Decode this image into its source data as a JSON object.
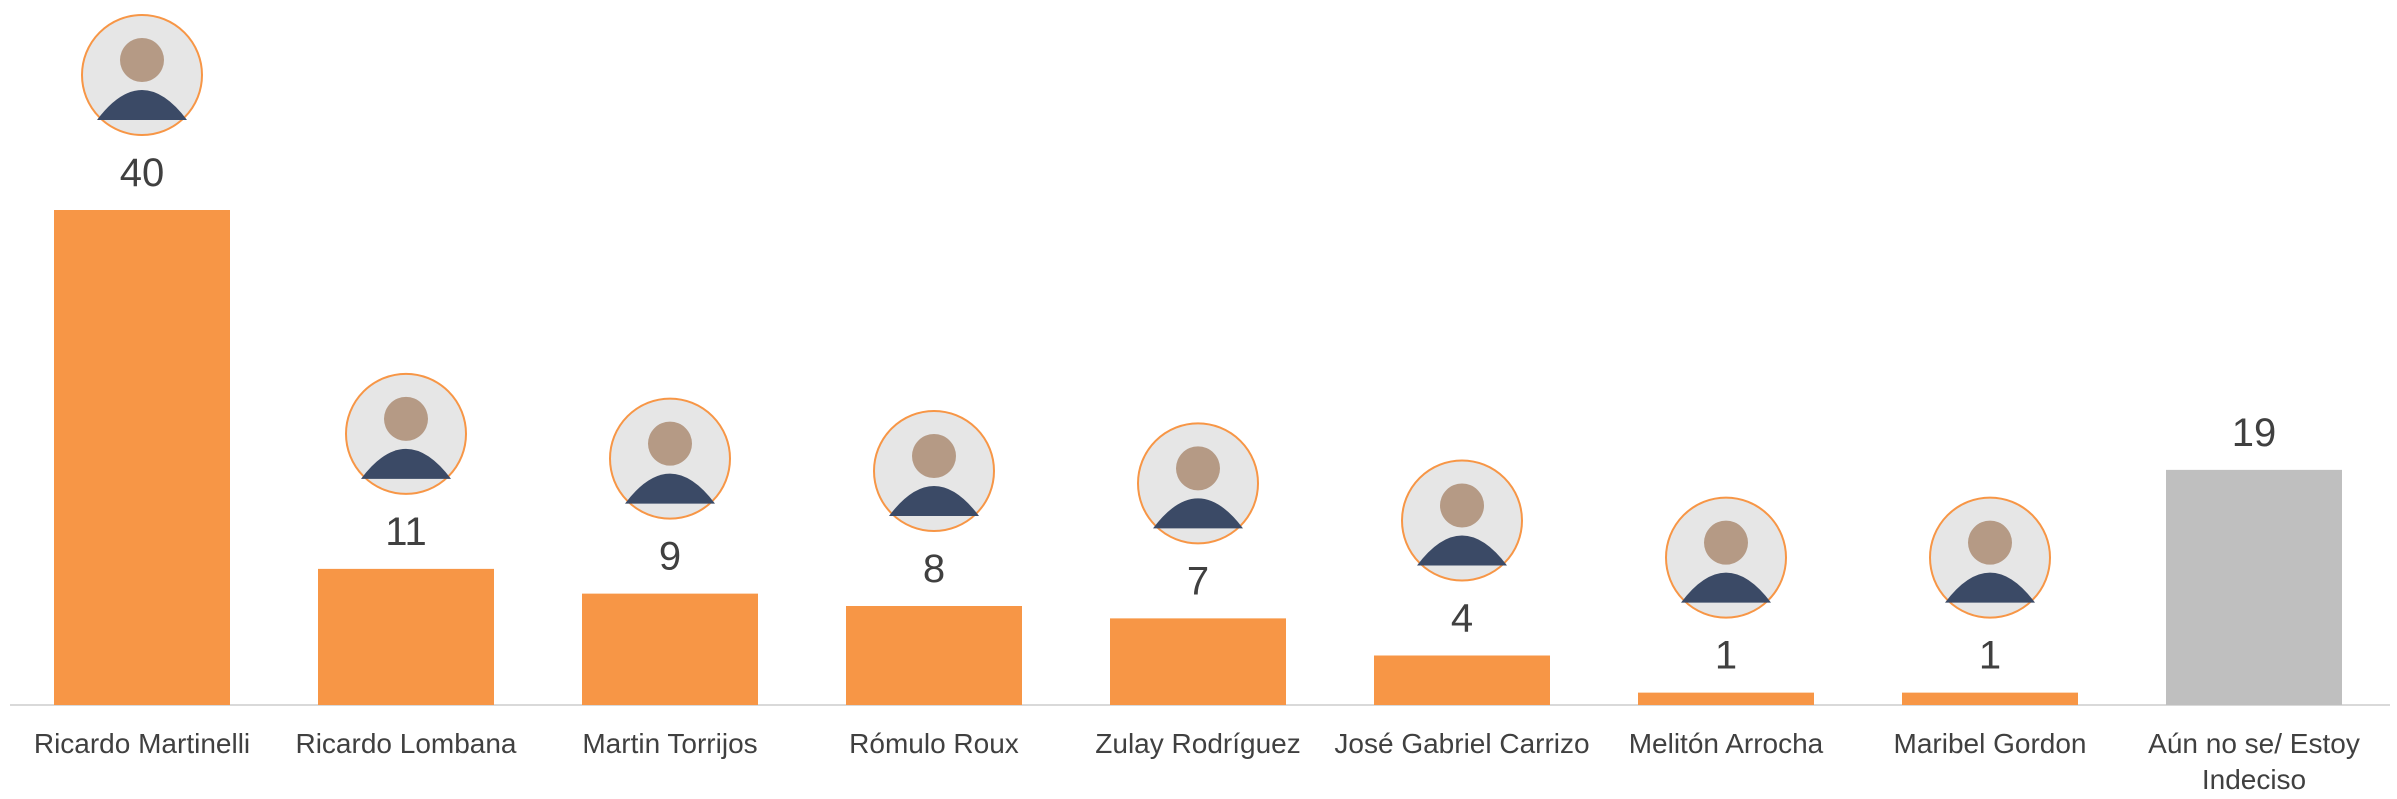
{
  "chart_data": {
    "type": "bar",
    "categories": [
      "Ricardo Martinelli",
      "Ricardo Lombana",
      "Martin Torrijos",
      "Rómulo Roux",
      "Zulay Rodríguez",
      "José Gabriel Carrizo",
      "Melitón Arrocha",
      "Maribel Gordon",
      "Aún no se/ Estoy Indeciso"
    ],
    "values": [
      40,
      11,
      9,
      8,
      7,
      4,
      1,
      1,
      19
    ],
    "colors": [
      "#f79646",
      "#f79646",
      "#f79646",
      "#f79646",
      "#f79646",
      "#f79646",
      "#f79646",
      "#f79646",
      "#bfbfbf"
    ]
  }
}
